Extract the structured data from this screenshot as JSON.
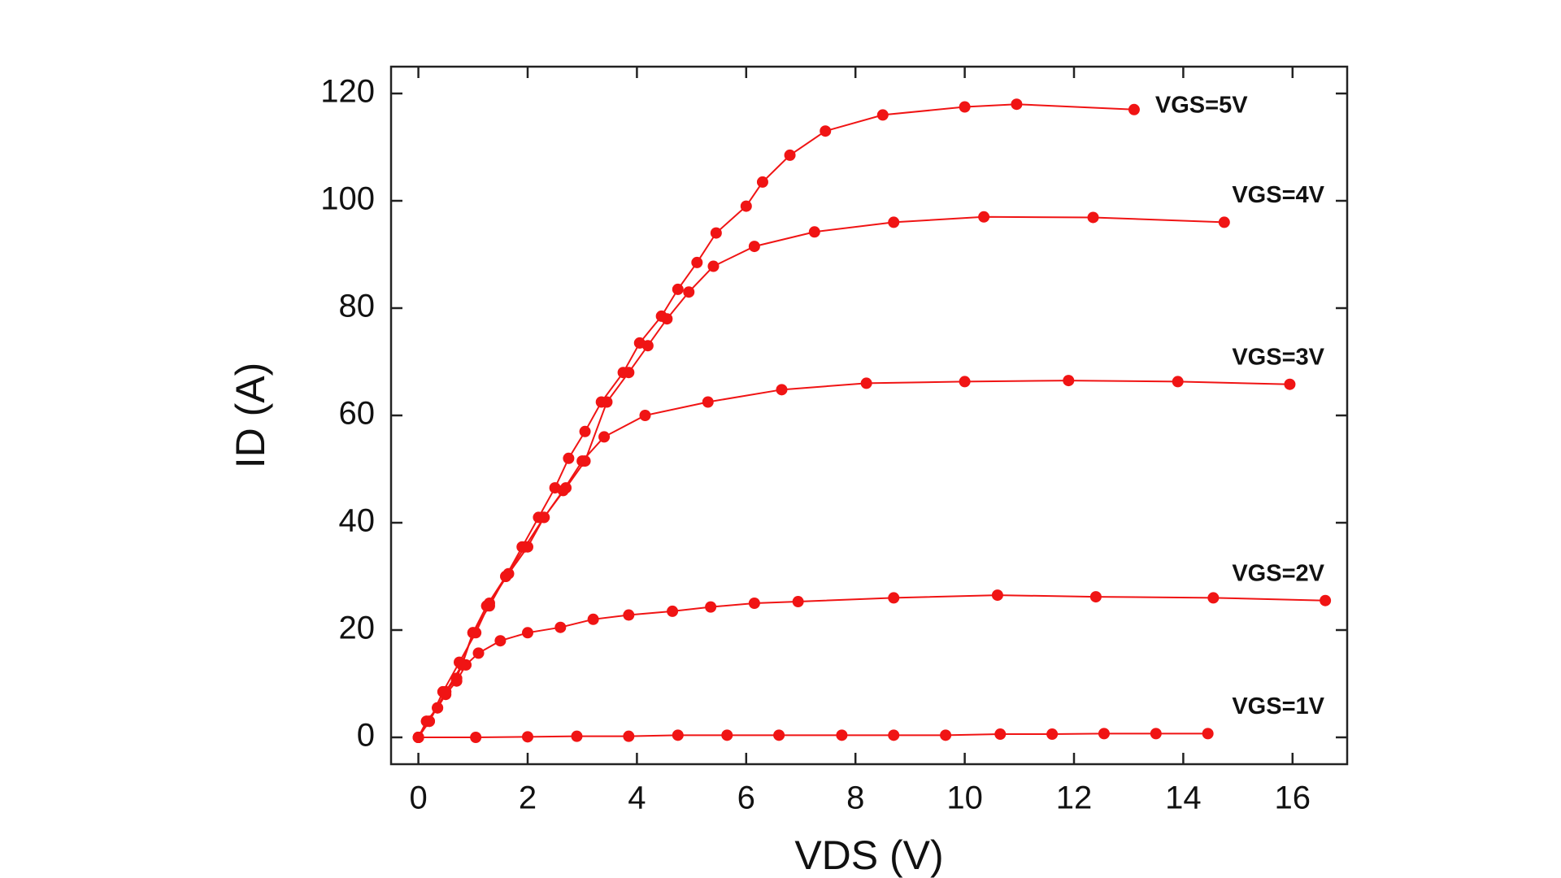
{
  "chart_data": {
    "type": "line",
    "x_label": "VDS (V)",
    "y_label": "ID (A)",
    "xlim": [
      -0.5,
      17
    ],
    "ylim": [
      -5,
      125
    ],
    "xticks": [
      0,
      2,
      4,
      6,
      8,
      10,
      12,
      14,
      16
    ],
    "yticks": [
      0,
      20,
      40,
      60,
      80,
      100,
      120
    ],
    "grid": false,
    "series": [
      {
        "name": "VGS=1V",
        "color": "#f01414",
        "x": [
          0,
          1.05,
          2,
          2.9,
          3.85,
          4.75,
          5.65,
          6.6,
          7.75,
          8.7,
          9.65,
          10.65,
          11.6,
          12.55,
          13.5,
          14.45
        ],
        "values": [
          0,
          0,
          0.1,
          0.2,
          0.2,
          0.4,
          0.4,
          0.4,
          0.4,
          0.4,
          0.4,
          0.6,
          0.6,
          0.7,
          0.7,
          0.7
        ]
      },
      {
        "name": "VGS=2V",
        "color": "#f01414",
        "x": [
          0,
          0.15,
          0.35,
          0.5,
          0.7,
          0.87,
          1.1,
          1.5,
          2.0,
          2.6,
          3.2,
          3.85,
          4.65,
          5.35,
          6.15,
          6.95,
          8.7,
          10.6,
          12.4,
          14.55,
          16.6
        ],
        "values": [
          0,
          3,
          5.5,
          8,
          10.5,
          13.5,
          15.7,
          18,
          19.5,
          20.5,
          22,
          22.8,
          23.5,
          24.3,
          25,
          25.3,
          26,
          26.5,
          26.2,
          26,
          25.5
        ]
      },
      {
        "name": "VGS=3V",
        "color": "#f01414",
        "x": [
          0,
          0.15,
          0.35,
          0.5,
          0.7,
          1.0,
          1.25,
          1.6,
          1.95,
          2.3,
          2.65,
          3.0,
          3.4,
          4.15,
          5.3,
          6.65,
          8.2,
          10,
          11.9,
          13.9,
          15.95
        ],
        "values": [
          0,
          3,
          5.5,
          8.5,
          11,
          19.5,
          24.5,
          30,
          35.5,
          41,
          46,
          51.5,
          56,
          60,
          62.5,
          64.8,
          66,
          66.3,
          66.5,
          66.3,
          65.8
        ]
      },
      {
        "name": "VGS=4V",
        "color": "#f01414",
        "x": [
          0,
          0.2,
          0.45,
          0.75,
          1.05,
          1.3,
          1.65,
          2.0,
          2.3,
          2.7,
          3.05,
          3.45,
          3.85,
          4.2,
          4.55,
          4.95,
          5.4,
          6.15,
          7.25,
          8.7,
          10.35,
          12.35,
          14.75
        ],
        "values": [
          0,
          3,
          8.5,
          14,
          19.5,
          25,
          30.5,
          35.5,
          41,
          46.5,
          51.5,
          62.5,
          68,
          73,
          78,
          83,
          87.8,
          91.5,
          94.2,
          96,
          97,
          96.9,
          96
        ]
      },
      {
        "name": "VGS=5V",
        "color": "#f01414",
        "x": [
          0,
          0.2,
          0.5,
          0.8,
          1.0,
          1.3,
          1.6,
          1.9,
          2.2,
          2.5,
          2.75,
          3.05,
          3.35,
          3.75,
          4.05,
          4.45,
          4.75,
          5.1,
          5.45,
          6.0,
          6.3,
          6.8,
          7.45,
          8.5,
          10,
          10.95,
          13.1
        ],
        "values": [
          0,
          3,
          8.5,
          13.5,
          19.5,
          24.5,
          30,
          35.5,
          41,
          46.5,
          52,
          57,
          62.5,
          68,
          73.5,
          78.5,
          83.5,
          88.5,
          94,
          99,
          103.5,
          108.5,
          113,
          116,
          117.5,
          118,
          117
        ]
      }
    ]
  }
}
